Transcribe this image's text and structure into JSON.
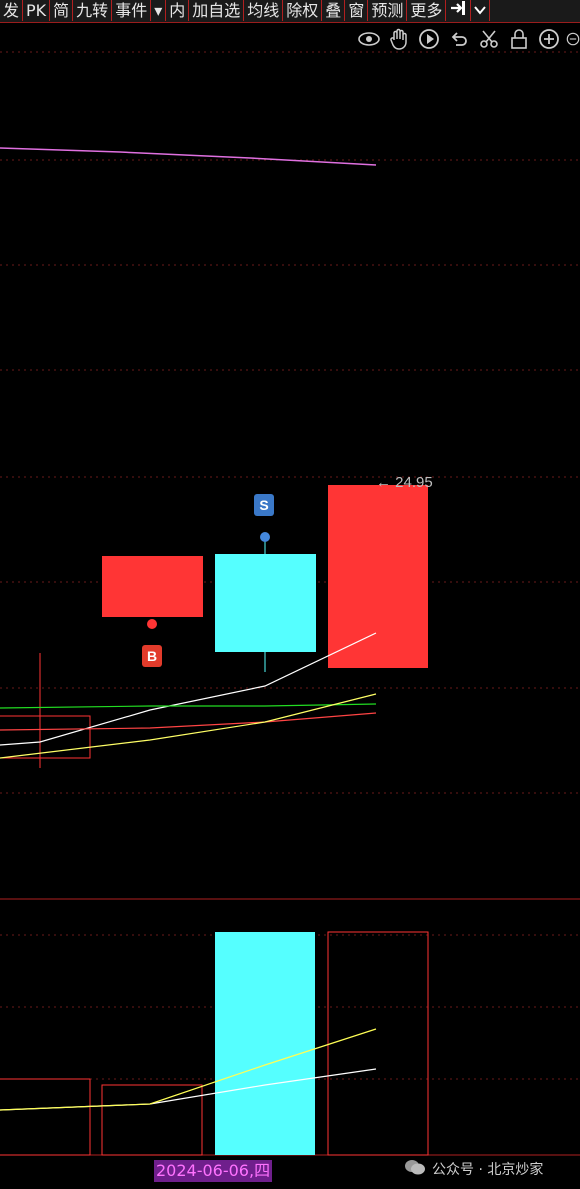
{
  "toolbar": {
    "items": [
      "发",
      "PK",
      "简",
      "九转",
      "事件",
      "▾",
      "内",
      "加自选",
      "均线",
      "除权",
      "叠",
      "窗",
      "预测",
      "更多"
    ]
  },
  "icons": [
    "eye-icon",
    "hand-icon",
    "play-icon",
    "undo-icon",
    "scissors-icon",
    "lock-icon",
    "zoom-in-icon",
    "zoom-out-icon"
  ],
  "chart": {
    "price_label": "← 24.95",
    "date_label": "2024-06-06,四",
    "buy_marker": "B",
    "sell_marker": "S",
    "colors": {
      "up": "#ff3333",
      "down": "#55ffff",
      "grid": "#7a1a1a",
      "ma5": "#ffffff",
      "ma10": "#ffff55",
      "ma20": "#22dd22",
      "ma60": "#ff4444"
    }
  },
  "watermark": {
    "text": "公众号 · 北京炒家"
  }
}
